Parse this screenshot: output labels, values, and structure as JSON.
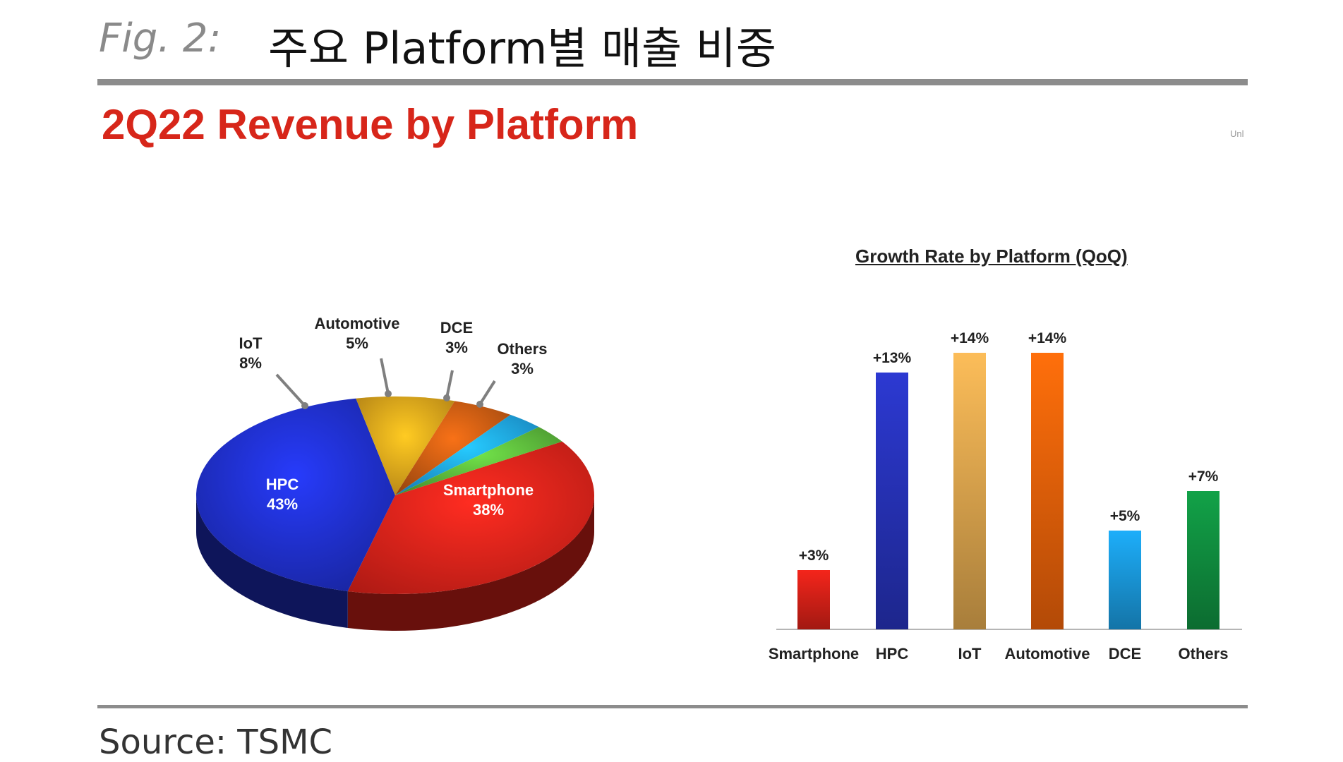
{
  "header": {
    "fig_label": "Fig. 2:",
    "fig_title": "주요 Platform별 매출 비중"
  },
  "unit_label": "Unl",
  "source": "Source: TSMC",
  "chart_data": [
    {
      "type": "pie",
      "title": "2Q22 Revenue by Platform",
      "slices": [
        {
          "label": "Smartphone",
          "value": 38,
          "value_label": "38%",
          "color": "#e8231a"
        },
        {
          "label": "HPC",
          "value": 43,
          "value_label": "43%",
          "color": "#1f2fc9"
        },
        {
          "label": "IoT",
          "value": 8,
          "value_label": "8%",
          "color": "#e3a21b"
        },
        {
          "label": "Automotive",
          "value": 5,
          "value_label": "5%",
          "color": "#c65a12"
        },
        {
          "label": "DCE",
          "value": 3,
          "value_label": "3%",
          "color": "#1ea2ee"
        },
        {
          "label": "Others",
          "value": 3,
          "value_label": "3%",
          "color": "#5ab53a"
        }
      ]
    },
    {
      "type": "bar",
      "title": "Growth Rate by Platform (QoQ)",
      "categories": [
        "Smartphone",
        "HPC",
        "IoT",
        "Automotive",
        "DCE",
        "Others"
      ],
      "values": [
        3,
        13,
        14,
        14,
        5,
        7
      ],
      "value_labels": [
        "+3%",
        "+13%",
        "+14%",
        "+14%",
        "+5%",
        "+7%"
      ],
      "colors": [
        "#e8231a",
        "#2a36c8",
        "#f0b455",
        "#ff6a0a",
        "#1ca6ee",
        "#119a45"
      ],
      "ylim": [
        0,
        14
      ]
    }
  ]
}
